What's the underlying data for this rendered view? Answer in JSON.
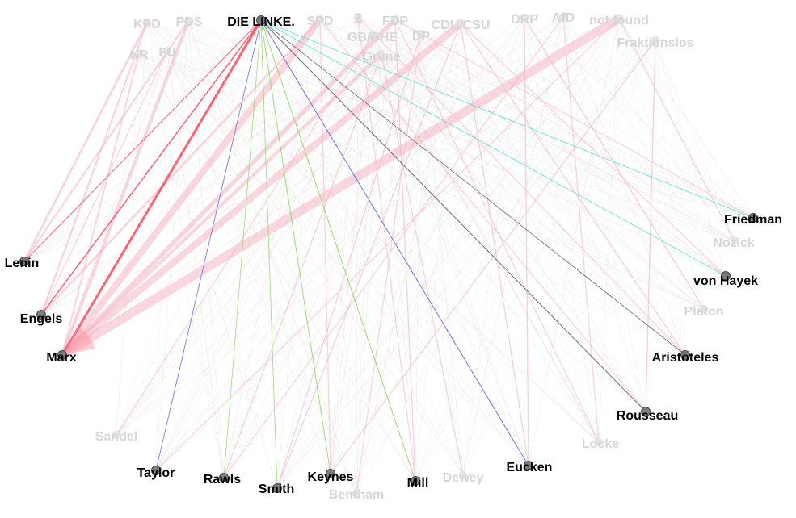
{
  "diagram": {
    "type": "bipartite-network",
    "focus_party": "DIE LINKE.",
    "parties": [
      {
        "id": "KPD",
        "label": "KPD",
        "active": false
      },
      {
        "id": "PDS",
        "label": "PDS",
        "active": false
      },
      {
        "id": "DIE_LINKE",
        "label": "DIE LINKE.",
        "active": true
      },
      {
        "id": "SPD",
        "label": "SPD",
        "active": false
      },
      {
        "id": "Z",
        "label": "Z",
        "active": false
      },
      {
        "id": "FDP",
        "label": "FDP",
        "active": false
      },
      {
        "id": "CDU_CSU",
        "label": "CDU/CSU",
        "active": false
      },
      {
        "id": "DRP",
        "label": "DRP",
        "active": false
      },
      {
        "id": "AfD",
        "label": "AfD",
        "active": false
      },
      {
        "id": "not_found",
        "label": "not found",
        "active": false
      },
      {
        "id": "GB_BHE",
        "label": "GB/BHE",
        "active": false
      },
      {
        "id": "DP",
        "label": "DP",
        "active": false
      },
      {
        "id": "NR",
        "label": "NR",
        "active": false
      },
      {
        "id": "FU",
        "label": "FU",
        "active": false
      },
      {
        "id": "Fraktionslos",
        "label": "Fraktionslos",
        "active": false
      },
      {
        "id": "Gruene",
        "label": "Grüne",
        "active": false
      }
    ],
    "thinkers": [
      {
        "id": "Lenin",
        "label": "Lenin",
        "active": true
      },
      {
        "id": "Engels",
        "label": "Engels",
        "active": true
      },
      {
        "id": "Marx",
        "label": "Marx",
        "active": true
      },
      {
        "id": "Friedman",
        "label": "Friedman",
        "active": true
      },
      {
        "id": "Nozick",
        "label": "Nozick",
        "active": false
      },
      {
        "id": "von_Hayek",
        "label": "von Hayek",
        "active": true
      },
      {
        "id": "Platon",
        "label": "Platon",
        "active": false
      },
      {
        "id": "Aristoteles",
        "label": "Aristoteles",
        "active": true
      },
      {
        "id": "Rousseau",
        "label": "Rousseau",
        "active": true
      },
      {
        "id": "Locke",
        "label": "Locke",
        "active": false
      },
      {
        "id": "Sandel",
        "label": "Sandel",
        "active": false
      },
      {
        "id": "Taylor",
        "label": "Taylor",
        "active": true
      },
      {
        "id": "Rawls",
        "label": "Rawls",
        "active": true
      },
      {
        "id": "Smith",
        "label": "Smith",
        "active": true
      },
      {
        "id": "Keynes",
        "label": "Keynes",
        "active": true
      },
      {
        "id": "Bentham",
        "label": "Bentham",
        "active": false
      },
      {
        "id": "Mill",
        "label": "Mill",
        "active": true
      },
      {
        "id": "Dewey",
        "label": "Dewey",
        "active": false
      },
      {
        "id": "Eucken",
        "label": "Eucken",
        "active": true
      }
    ],
    "edge_colors": {
      "marxist": "#ff4a5e",
      "liberal": "#8fd468",
      "ordo": "#5b5bd6",
      "classic": "#555555",
      "austrian": "#52d6d6",
      "faded": "#f5b8c4"
    },
    "edges": [
      {
        "from": "DIE_LINKE",
        "to": "Marx",
        "weight": 3,
        "color": "marxist",
        "highlight": true
      },
      {
        "from": "DIE_LINKE",
        "to": "Engels",
        "weight": 1.5,
        "color": "marxist",
        "highlight": true
      },
      {
        "from": "DIE_LINKE",
        "to": "Lenin",
        "weight": 1,
        "color": "marxist",
        "highlight": true
      },
      {
        "from": "DIE_LINKE",
        "to": "Taylor",
        "weight": 0.8,
        "color": "ordo",
        "highlight": true
      },
      {
        "from": "DIE_LINKE",
        "to": "Rawls",
        "weight": 0.8,
        "color": "liberal",
        "highlight": true
      },
      {
        "from": "DIE_LINKE",
        "to": "Smith",
        "weight": 0.8,
        "color": "liberal",
        "highlight": true
      },
      {
        "from": "DIE_LINKE",
        "to": "Keynes",
        "weight": 1,
        "color": "liberal",
        "highlight": true
      },
      {
        "from": "DIE_LINKE",
        "to": "Mill",
        "weight": 1,
        "color": "liberal",
        "highlight": true
      },
      {
        "from": "DIE_LINKE",
        "to": "Eucken",
        "weight": 1,
        "color": "ordo",
        "highlight": true
      },
      {
        "from": "DIE_LINKE",
        "to": "Rousseau",
        "weight": 1,
        "color": "classic",
        "highlight": true
      },
      {
        "from": "DIE_LINKE",
        "to": "Aristoteles",
        "weight": 0.8,
        "color": "classic",
        "highlight": true
      },
      {
        "from": "DIE_LINKE",
        "to": "Friedman",
        "weight": 0.8,
        "color": "austrian",
        "highlight": true
      },
      {
        "from": "DIE_LINKE",
        "to": "von_Hayek",
        "weight": 0.8,
        "color": "austrian",
        "highlight": true
      },
      {
        "from": "not_found",
        "to": "Marx",
        "weight": 8,
        "color": "faded",
        "highlight": false
      },
      {
        "from": "CDU_CSU",
        "to": "Marx",
        "weight": 6,
        "color": "faded",
        "highlight": false
      },
      {
        "from": "SPD",
        "to": "Marx",
        "weight": 6,
        "color": "faded",
        "highlight": false
      },
      {
        "from": "FDP",
        "to": "Marx",
        "weight": 4,
        "color": "faded",
        "highlight": false
      },
      {
        "from": "PDS",
        "to": "Marx",
        "weight": 3,
        "color": "faded",
        "highlight": false
      },
      {
        "from": "KPD",
        "to": "Lenin",
        "weight": 2,
        "color": "faded",
        "highlight": false
      },
      {
        "from": "KPD",
        "to": "Engels",
        "weight": 1.5,
        "color": "faded",
        "highlight": false
      },
      {
        "from": "PDS",
        "to": "Lenin",
        "weight": 1.5,
        "color": "faded",
        "highlight": false
      },
      {
        "from": "SPD",
        "to": "Engels",
        "weight": 2,
        "color": "faded",
        "highlight": false
      },
      {
        "from": "Gruene",
        "to": "Marx",
        "weight": 3,
        "color": "faded",
        "highlight": false
      },
      {
        "from": "CDU_CSU",
        "to": "Smith",
        "weight": 1,
        "color": "faded",
        "highlight": false
      },
      {
        "from": "CDU_CSU",
        "to": "Eucken",
        "weight": 1,
        "color": "faded",
        "highlight": false
      },
      {
        "from": "FDP",
        "to": "Mill",
        "weight": 1,
        "color": "faded",
        "highlight": false
      },
      {
        "from": "FDP",
        "to": "Friedman",
        "weight": 1,
        "color": "faded",
        "highlight": false
      },
      {
        "from": "SPD",
        "to": "Keynes",
        "weight": 1,
        "color": "faded",
        "highlight": false
      },
      {
        "from": "Fraktionslos",
        "to": "Rousseau",
        "weight": 1,
        "color": "faded",
        "highlight": false
      },
      {
        "from": "AfD",
        "to": "Locke",
        "weight": 1,
        "color": "faded",
        "highlight": false
      },
      {
        "from": "DRP",
        "to": "Platon",
        "weight": 1,
        "color": "faded",
        "highlight": false
      },
      {
        "from": "Gruene",
        "to": "Dewey",
        "weight": 1,
        "color": "faded",
        "highlight": false
      },
      {
        "from": "GB_BHE",
        "to": "Sandel",
        "weight": 1,
        "color": "faded",
        "highlight": false
      },
      {
        "from": "DP",
        "to": "Bentham",
        "weight": 1,
        "color": "faded",
        "highlight": false
      },
      {
        "from": "Z",
        "to": "Aristoteles",
        "weight": 1,
        "color": "faded",
        "highlight": false
      },
      {
        "from": "not_found",
        "to": "Nozick",
        "weight": 1,
        "color": "faded",
        "highlight": false
      },
      {
        "from": "CDU_CSU",
        "to": "von_Hayek",
        "weight": 1,
        "color": "faded",
        "highlight": false
      },
      {
        "from": "NR",
        "to": "Marx",
        "weight": 1.5,
        "color": "faded",
        "highlight": false
      },
      {
        "from": "FU",
        "to": "Engels",
        "weight": 1,
        "color": "faded",
        "highlight": false
      },
      {
        "from": "AfD",
        "to": "Rawls",
        "weight": 1,
        "color": "faded",
        "highlight": false
      },
      {
        "from": "not_found",
        "to": "Taylor",
        "weight": 1,
        "color": "faded",
        "highlight": false
      },
      {
        "from": "Fraktionslos",
        "to": "Keynes",
        "weight": 1,
        "color": "faded",
        "highlight": false
      },
      {
        "from": "DRP",
        "to": "Eucken",
        "weight": 1,
        "color": "faded",
        "highlight": false
      },
      {
        "from": "Z",
        "to": "Mill",
        "weight": 1,
        "color": "faded",
        "highlight": false
      },
      {
        "from": "SPD",
        "to": "Rousseau",
        "weight": 1,
        "color": "faded",
        "highlight": false
      },
      {
        "from": "FDP",
        "to": "Locke",
        "weight": 1,
        "color": "faded",
        "highlight": false
      },
      {
        "from": "CDU_CSU",
        "to": "Aristoteles",
        "weight": 1,
        "color": "faded",
        "highlight": false
      },
      {
        "from": "Gruene",
        "to": "Rawls",
        "weight": 1,
        "color": "faded",
        "highlight": false
      },
      {
        "from": "DP",
        "to": "Smith",
        "weight": 1,
        "color": "faded",
        "highlight": false
      }
    ]
  }
}
